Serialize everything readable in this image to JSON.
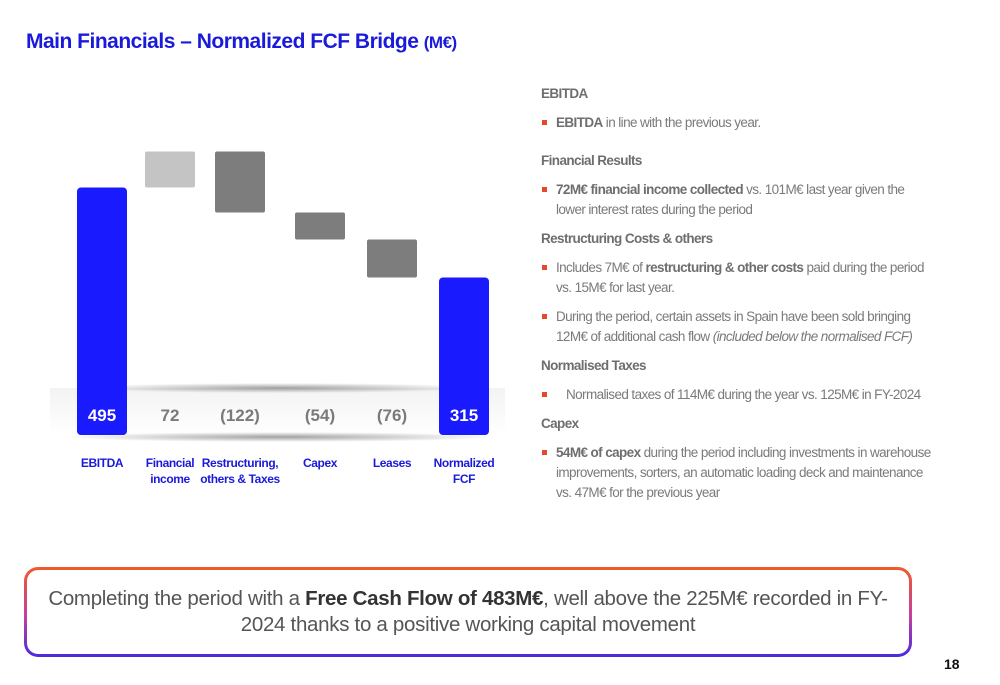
{
  "title": "Main Financials – Normalized FCF Bridge",
  "title_unit": "(M€)",
  "chart_data": {
    "type": "bar",
    "subtype": "waterfall",
    "categories": [
      "EBITDA",
      "Financial income",
      "Restructuring, others & Taxes",
      "Capex",
      "Leases",
      "Normalized FCF"
    ],
    "category_lines": [
      [
        "EBITDA"
      ],
      [
        "Financial",
        "income"
      ],
      [
        "Restructuring,",
        "others & Taxes"
      ],
      [
        "Capex"
      ],
      [
        "Leases"
      ],
      [
        "Normalized",
        "FCF"
      ]
    ],
    "values": [
      495,
      72,
      -122,
      -54,
      -76,
      315
    ],
    "value_labels": [
      "495",
      "72",
      "(122)",
      "(54)",
      "(76)",
      "315"
    ],
    "bar_kinds": [
      "total",
      "increase",
      "decrease",
      "decrease",
      "decrease",
      "total"
    ],
    "colors": {
      "total": "#1a1aff",
      "increase": "#c4c4c4",
      "decrease": "#7d7d7d",
      "label_on_bar": "#ffffff",
      "label_off_bar": "#7a7a7a",
      "category": "#1a1adb"
    }
  },
  "notes": {
    "ebitda": {
      "heading": "EBITDA",
      "item_bold": "EBITDA",
      "item_rest": " in line with the previous year."
    },
    "financial": {
      "heading": "Financial Results",
      "item_bold": "72M€ financial income collected",
      "item_rest": " vs. 101M€ last year given the lower interest rates during the period"
    },
    "restructuring": {
      "heading": "Restructuring Costs & others",
      "item1_pre": "Includes 7M€ of ",
      "item1_bold": "restructuring & other costs",
      "item1_post": " paid during the period vs. 15M€ for last year.",
      "item2_pre": "During the period, certain assets in Spain have been sold bringing 12M€ of additional cash flow ",
      "item2_italic": "(included below the normalised FCF)"
    },
    "taxes": {
      "heading": "Normalised Taxes",
      "item": "Normalised taxes of 114M€ during the year vs. 125M€ in FY-2024"
    },
    "capex": {
      "heading": "Capex",
      "item_bold": "54M€ of capex",
      "item_rest": " during the period including investments in warehouse improvements, sorters, an automatic loading deck and maintenance vs. 47M€ for the previous year"
    }
  },
  "conclusion": {
    "pre": "Completing the period with a ",
    "bold": "Free Cash Flow of 483M€",
    "post": ", well above the 225M€ recorded in FY-2024 thanks to a positive working capital movement"
  },
  "page_number": "18"
}
